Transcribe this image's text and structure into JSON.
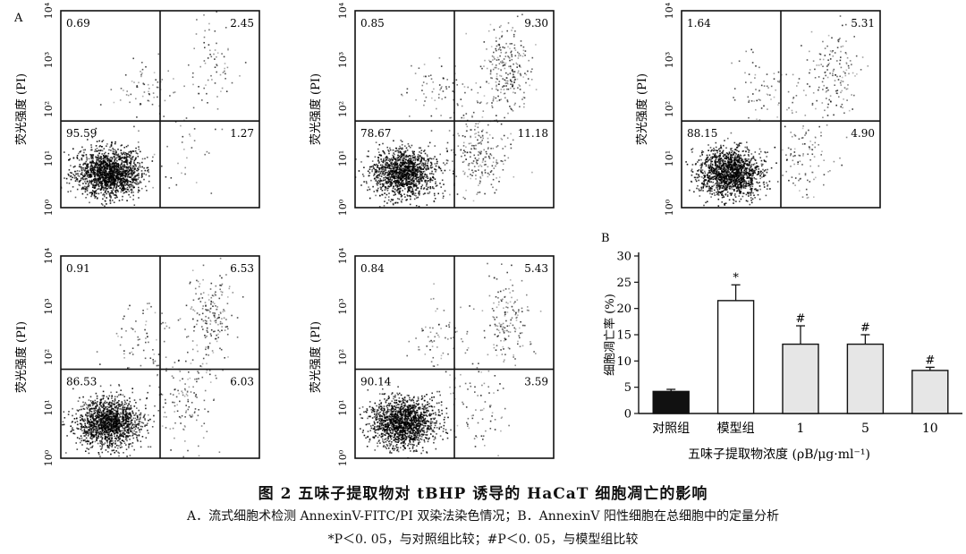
{
  "figure": {
    "title": "图 2  五味子提取物对 tBHP 诱导的 HaCaT 细胞凋亡的影响",
    "caption_line1": "A．流式细胞术检测 AnnexinV-FITC/PI 双染法染色情况；B．AnnexinV 阳性细胞在总细胞中的定量分析",
    "caption_line2": "*P＜0. 05，与对照组比较；#P＜0. 05，与模型组比较"
  },
  "chart_data": [
    {
      "type": "scatter",
      "panel_label": "A",
      "ylabel": "荧光强度 (PI)",
      "y_ticks": [
        "10⁰",
        "10¹",
        "10²",
        "10³",
        "10⁴"
      ],
      "quadrant_percent": {
        "upper_left": "0.69",
        "upper_right": "2.45",
        "lower_left": "95.59",
        "lower_right": "1.27"
      }
    },
    {
      "type": "scatter",
      "panel_label": "",
      "ylabel": "荧光强度 (PI)",
      "y_ticks": [
        "10⁰",
        "10¹",
        "10²",
        "10³",
        "10⁴"
      ],
      "quadrant_percent": {
        "upper_left": "0.85",
        "upper_right": "9.30",
        "lower_left": "78.67",
        "lower_right": "11.18"
      }
    },
    {
      "type": "scatter",
      "panel_label": "",
      "ylabel": "荧光强度 (PI)",
      "y_ticks": [
        "10⁰",
        "10¹",
        "10²",
        "10³",
        "10⁴"
      ],
      "quadrant_percent": {
        "upper_left": "1.64",
        "upper_right": "5.31",
        "lower_left": "88.15",
        "lower_right": "4.90"
      }
    },
    {
      "type": "scatter",
      "panel_label": "",
      "ylabel": "荧光强度 (PI)",
      "y_ticks": [
        "10⁰",
        "10¹",
        "10²",
        "10³",
        "10⁴"
      ],
      "quadrant_percent": {
        "upper_left": "0.91",
        "upper_right": "6.53",
        "lower_left": "86.53",
        "lower_right": "6.03"
      }
    },
    {
      "type": "scatter",
      "panel_label": "",
      "ylabel": "荧光强度 (PI)",
      "y_ticks": [
        "10⁰",
        "10¹",
        "10²",
        "10³",
        "10⁴"
      ],
      "quadrant_percent": {
        "upper_left": "0.84",
        "upper_right": "5.43",
        "lower_left": "90.14",
        "lower_right": "3.59"
      }
    },
    {
      "type": "bar",
      "panel_label": "B",
      "ylabel": "细胞凋亡率 (%)",
      "xlabel": "五味子提取物浓度 (ρB/μg·ml⁻¹)",
      "categories": [
        "对照组",
        "模型组",
        "1",
        "5",
        "10"
      ],
      "values": [
        4.2,
        21.5,
        13.2,
        13.2,
        8.2
      ],
      "errors": [
        0.4,
        3.0,
        3.5,
        1.8,
        0.6
      ],
      "significance": [
        "",
        "*",
        "#",
        "#",
        "#"
      ],
      "bar_colors": [
        "#111111",
        "#ffffff",
        "#e6e6e6",
        "#e6e6e6",
        "#e6e6e6"
      ],
      "ylim": [
        0,
        30
      ],
      "y_ticks": [
        0,
        5,
        10,
        15,
        20,
        25,
        30
      ]
    }
  ]
}
